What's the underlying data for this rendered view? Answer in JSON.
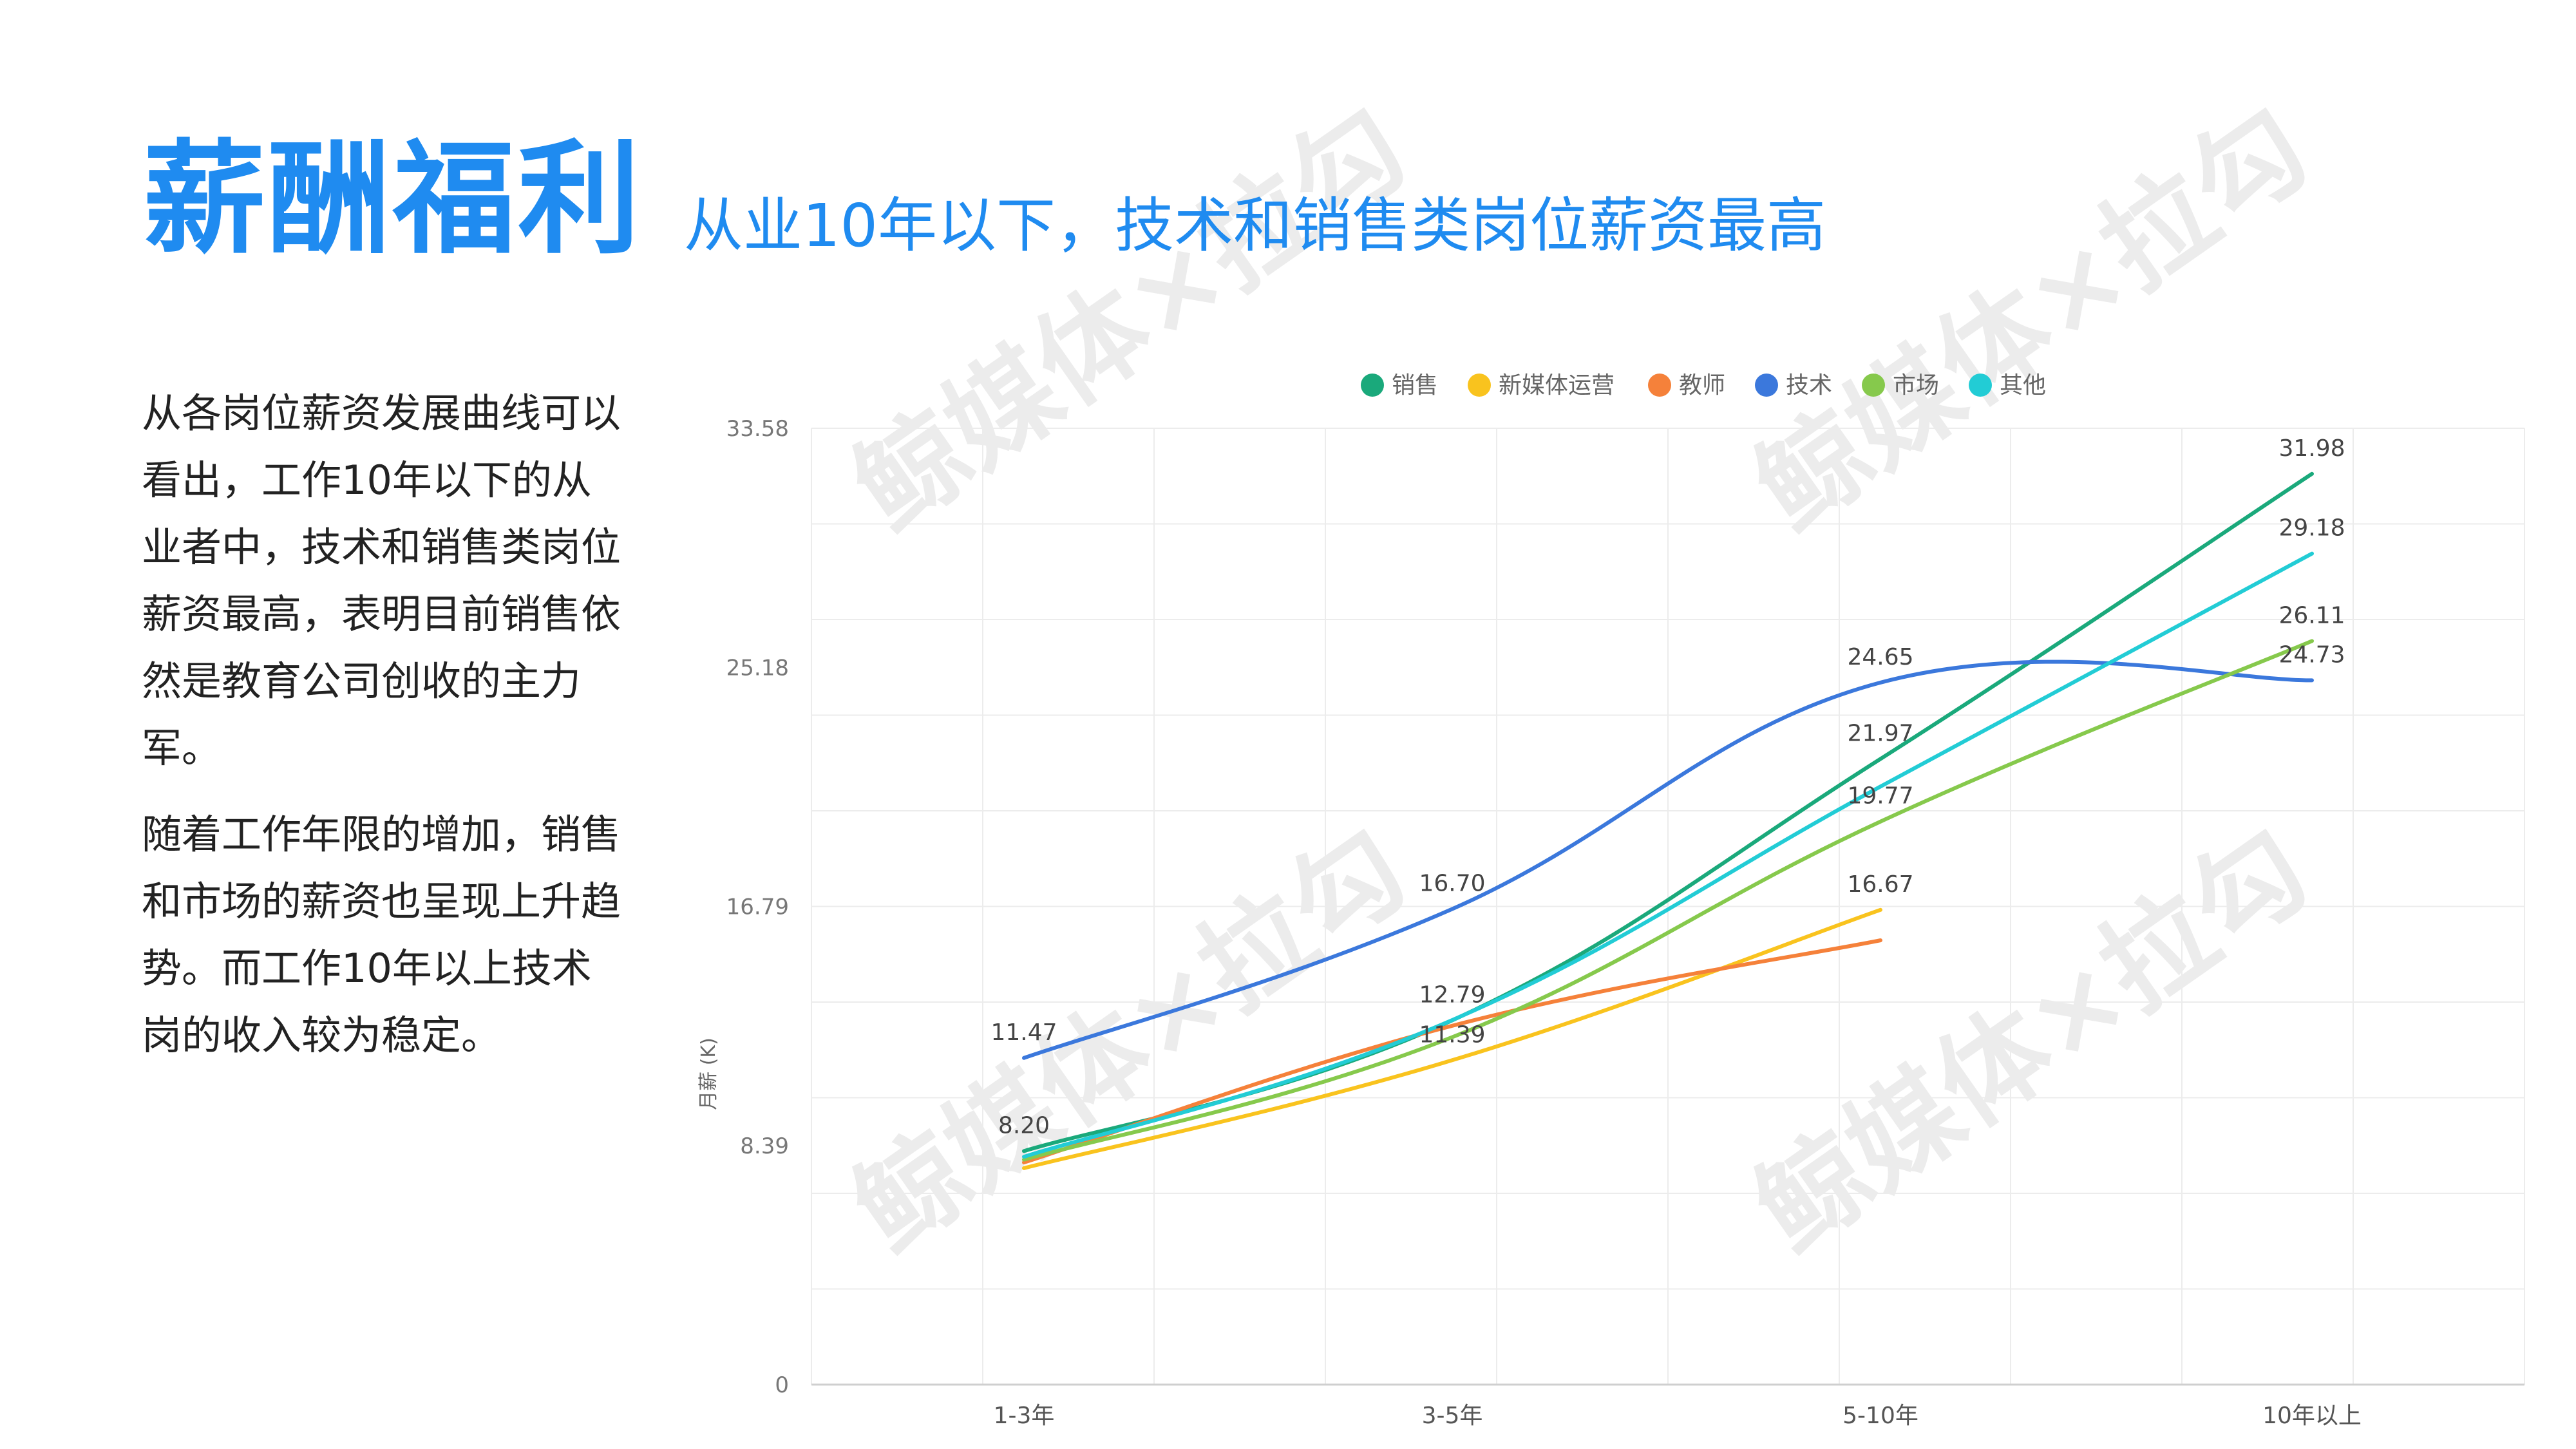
{
  "header": {
    "title": "薪酬福利",
    "subtitle": "从业10年以下，技术和销售类岗位薪资最高"
  },
  "body": {
    "paragraph1": "从各岗位薪资发展曲线可以看出，工作10年以下的从业者中，技术和销售类岗位薪资最高，表明目前销售依然是教育公司创收的主力军。",
    "paragraph2": "随着工作年限的增加，销售和市场的薪资也呈现上升趋势。而工作10年以上技术岗的收入较为稳定。"
  },
  "watermark": {
    "text": "鲸媒体×拉勾"
  },
  "chart_data": {
    "type": "line",
    "categories": [
      "1-3年",
      "3-5年",
      "5-10年",
      "10年以上"
    ],
    "ylabel": "月薪 (K)",
    "ylim": [
      0,
      33.58
    ],
    "yticks": [
      "0",
      "8.39",
      "16.79",
      "25.18",
      "33.58"
    ],
    "grid": true,
    "legend_position": "top",
    "series": [
      {
        "name": "销售",
        "color": "#1aa97b",
        "values": [
          8.2,
          12.79,
          21.97,
          31.98
        ]
      },
      {
        "name": "新媒体运营",
        "color": "#f9c31e",
        "values": [
          7.6,
          11.39,
          16.67,
          null
        ]
      },
      {
        "name": "教师",
        "color": "#f5813a",
        "values": [
          7.8,
          12.6,
          15.6,
          null
        ]
      },
      {
        "name": "技术",
        "color": "#3b78dc",
        "values": [
          11.47,
          16.7,
          24.65,
          24.73
        ]
      },
      {
        "name": "市场",
        "color": "#86c94c",
        "values": [
          7.9,
          12.2,
          19.77,
          26.11
        ]
      },
      {
        "name": "其他",
        "color": "#22ccd5",
        "values": [
          8.0,
          12.8,
          21.0,
          29.18
        ]
      }
    ],
    "data_labels": [
      {
        "series": "技术",
        "index": 0,
        "text": "11.47"
      },
      {
        "series": "销售",
        "index": 0,
        "text": "8.20"
      },
      {
        "series": "技术",
        "index": 1,
        "text": "16.70"
      },
      {
        "series": "销售",
        "index": 1,
        "text": "12.79"
      },
      {
        "series": "新媒体运营",
        "index": 1,
        "text": "11.39"
      },
      {
        "series": "技术",
        "index": 2,
        "text": "24.65"
      },
      {
        "series": "销售",
        "index": 2,
        "text": "21.97"
      },
      {
        "series": "市场",
        "index": 2,
        "text": "19.77"
      },
      {
        "series": "新媒体运营",
        "index": 2,
        "text": "16.67"
      },
      {
        "series": "销售",
        "index": 3,
        "text": "31.98"
      },
      {
        "series": "其他",
        "index": 3,
        "text": "29.18"
      },
      {
        "series": "市场",
        "index": 3,
        "text": "26.11"
      },
      {
        "series": "技术",
        "index": 3,
        "text": "24.73"
      }
    ]
  }
}
